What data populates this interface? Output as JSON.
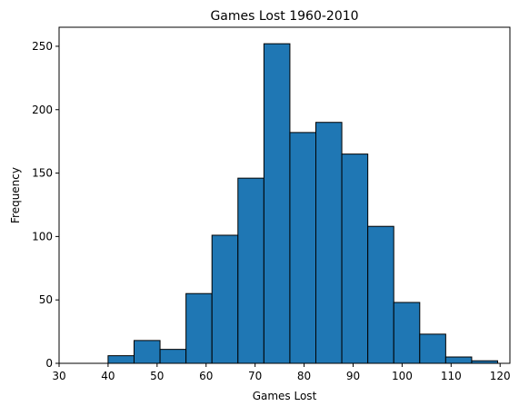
{
  "chart_data": {
    "type": "bar",
    "title": "Games Lost 1960-2010",
    "xlabel": "Games Lost",
    "ylabel": "Frequency",
    "bin_edges": [
      40,
      45.3,
      50.6,
      55.9,
      61.2,
      66.5,
      71.8,
      77.1,
      82.4,
      87.7,
      93.0,
      98.3,
      103.6,
      108.9,
      114.2,
      119.5
    ],
    "values": [
      6,
      18,
      11,
      55,
      101,
      146,
      252,
      182,
      190,
      165,
      108,
      48,
      23,
      5,
      2
    ],
    "xlim": [
      30,
      122
    ],
    "ylim": [
      0,
      265
    ],
    "xticks": [
      30,
      40,
      50,
      60,
      70,
      80,
      90,
      100,
      110,
      120
    ],
    "yticks": [
      0,
      50,
      100,
      150,
      200,
      250
    ],
    "grid": false,
    "bar_color": "#1f77b4",
    "edge_color": "#000000"
  }
}
